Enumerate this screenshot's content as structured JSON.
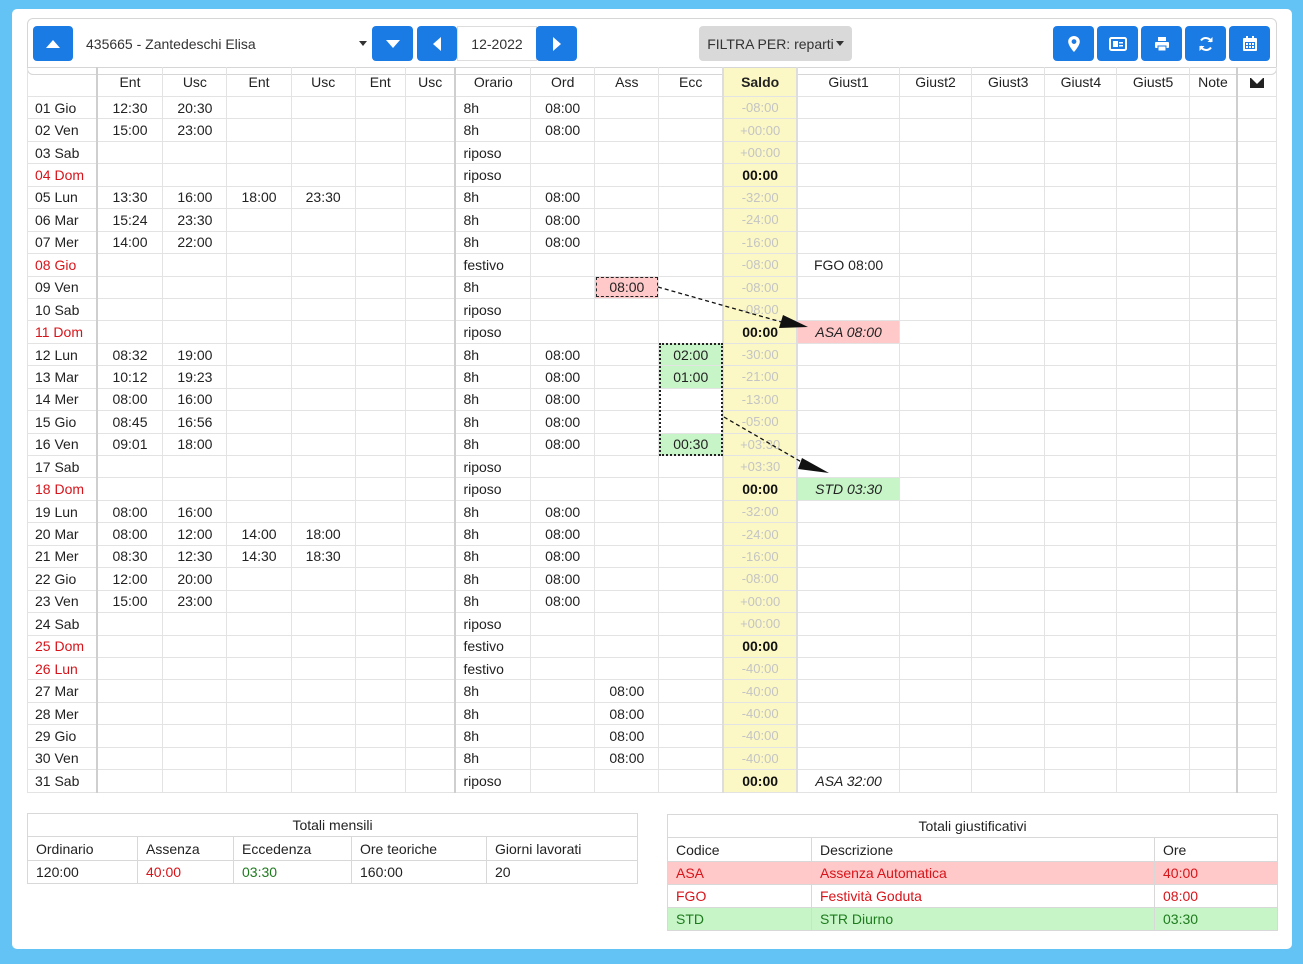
{
  "toolbar": {
    "employee": "435665 - Zantedeschi Elisa",
    "month": "12-2022",
    "filter_label": "FILTRA PER: reparti"
  },
  "icons": {
    "prev_employee": "chevron-up-icon",
    "next_employee": "chevron-down-icon",
    "prev_month": "chevron-left-icon",
    "next_month": "chevron-right-icon",
    "right_buttons": [
      "map-marker-icon",
      "id-card-icon",
      "print-icon",
      "refresh-icon",
      "calendar-icon"
    ],
    "notes_header": "envelope-icon"
  },
  "colors": {
    "accent": "#1a7be5",
    "holiday_red": "#d7141a",
    "saldo_bg": "#fbf8c5",
    "absence_bg": "#ffc9c9",
    "excess_bg": "#c7f5c7",
    "excess_green": "#1e7b1e",
    "page_bg": "#63c3f4"
  },
  "grid": {
    "columns": [
      "",
      "Ent",
      "Usc",
      "Ent",
      "Usc",
      "Ent",
      "Usc",
      "Orario",
      "Ord",
      "Ass",
      "Ecc",
      "Saldo",
      "Giust1",
      "Giust2",
      "Giust3",
      "Giust4",
      "Giust5",
      "Note",
      ""
    ],
    "rows": [
      {
        "day": "01 Gio",
        "red": false,
        "e1": "12:30",
        "u1": "20:30",
        "e2": "",
        "u2": "",
        "orario": "8h",
        "ord": "08:00",
        "ass": "",
        "ecc": "",
        "saldo": "-08:00",
        "saldo_bold": false,
        "g1": ""
      },
      {
        "day": "02 Ven",
        "red": false,
        "e1": "15:00",
        "u1": "23:00",
        "e2": "",
        "u2": "",
        "orario": "8h",
        "ord": "08:00",
        "ass": "",
        "ecc": "",
        "saldo": "+00:00",
        "saldo_bold": false,
        "g1": ""
      },
      {
        "day": "03 Sab",
        "red": false,
        "e1": "",
        "u1": "",
        "e2": "",
        "u2": "",
        "orario": "riposo",
        "ord": "",
        "ass": "",
        "ecc": "",
        "saldo": "+00:00",
        "saldo_bold": false,
        "g1": ""
      },
      {
        "day": "04 Dom",
        "red": true,
        "e1": "",
        "u1": "",
        "e2": "",
        "u2": "",
        "orario": "riposo",
        "ord": "",
        "ass": "",
        "ecc": "",
        "saldo": "00:00",
        "saldo_bold": true,
        "g1": ""
      },
      {
        "day": "05 Lun",
        "red": false,
        "e1": "13:30",
        "u1": "16:00",
        "e2": "18:00",
        "u2": "23:30",
        "orario": "8h",
        "ord": "08:00",
        "ass": "",
        "ecc": "",
        "saldo": "-32:00",
        "saldo_bold": false,
        "g1": ""
      },
      {
        "day": "06 Mar",
        "red": false,
        "e1": "15:24",
        "u1": "23:30",
        "e2": "",
        "u2": "",
        "orario": "8h",
        "ord": "08:00",
        "ass": "",
        "ecc": "",
        "saldo": "-24:00",
        "saldo_bold": false,
        "g1": ""
      },
      {
        "day": "07 Mer",
        "red": false,
        "e1": "14:00",
        "u1": "22:00",
        "e2": "",
        "u2": "",
        "orario": "8h",
        "ord": "08:00",
        "ass": "",
        "ecc": "",
        "saldo": "-16:00",
        "saldo_bold": false,
        "g1": ""
      },
      {
        "day": "08 Gio",
        "red": true,
        "e1": "",
        "u1": "",
        "e2": "",
        "u2": "",
        "orario": "festivo",
        "ord": "",
        "ass": "",
        "ecc": "",
        "saldo": "-08:00",
        "saldo_bold": false,
        "g1": "FGO 08:00",
        "g1_style": "red"
      },
      {
        "day": "09 Ven",
        "red": false,
        "e1": "",
        "u1": "",
        "e2": "",
        "u2": "",
        "orario": "8h",
        "ord": "",
        "ass": "08:00",
        "ass_hl": true,
        "ecc": "",
        "saldo": "-08:00",
        "saldo_bold": false,
        "g1": ""
      },
      {
        "day": "10 Sab",
        "red": false,
        "e1": "",
        "u1": "",
        "e2": "",
        "u2": "",
        "orario": "riposo",
        "ord": "",
        "ass": "",
        "ecc": "",
        "saldo": "-08:00",
        "saldo_bold": false,
        "g1": ""
      },
      {
        "day": "11 Dom",
        "red": true,
        "e1": "",
        "u1": "",
        "e2": "",
        "u2": "",
        "orario": "riposo",
        "ord": "",
        "ass": "",
        "ecc": "",
        "saldo": "00:00",
        "saldo_bold": true,
        "g1": "ASA 08:00",
        "g1_style": "asa"
      },
      {
        "day": "12 Lun",
        "red": false,
        "e1": "08:32",
        "u1": "19:00",
        "e2": "",
        "u2": "",
        "orario": "8h",
        "ord": "08:00",
        "ass": "",
        "ecc": "02:00",
        "ecc_hl": true,
        "saldo": "-30:00",
        "saldo_bold": false,
        "g1": ""
      },
      {
        "day": "13 Mar",
        "red": false,
        "e1": "10:12",
        "u1": "19:23",
        "e2": "",
        "u2": "",
        "orario": "8h",
        "ord": "08:00",
        "ass": "",
        "ecc": "01:00",
        "ecc_hl": true,
        "saldo": "-21:00",
        "saldo_bold": false,
        "g1": ""
      },
      {
        "day": "14 Mer",
        "red": false,
        "e1": "08:00",
        "u1": "16:00",
        "e2": "",
        "u2": "",
        "orario": "8h",
        "ord": "08:00",
        "ass": "",
        "ecc": "",
        "saldo": "-13:00",
        "saldo_bold": false,
        "g1": ""
      },
      {
        "day": "15 Gio",
        "red": false,
        "e1": "08:45",
        "u1": "16:56",
        "e2": "",
        "u2": "",
        "orario": "8h",
        "ord": "08:00",
        "ass": "",
        "ecc": "",
        "saldo": "-05:00",
        "saldo_bold": false,
        "g1": ""
      },
      {
        "day": "16 Ven",
        "red": false,
        "e1": "09:01",
        "u1": "18:00",
        "e2": "",
        "u2": "",
        "orario": "8h",
        "ord": "08:00",
        "ass": "",
        "ecc": "00:30",
        "ecc_hl": true,
        "saldo": "+03:30",
        "saldo_bold": false,
        "g1": ""
      },
      {
        "day": "17 Sab",
        "red": false,
        "e1": "",
        "u1": "",
        "e2": "",
        "u2": "",
        "orario": "riposo",
        "ord": "",
        "ass": "",
        "ecc": "",
        "saldo": "+03:30",
        "saldo_bold": false,
        "g1": ""
      },
      {
        "day": "18 Dom",
        "red": true,
        "e1": "",
        "u1": "",
        "e2": "",
        "u2": "",
        "orario": "riposo",
        "ord": "",
        "ass": "",
        "ecc": "",
        "saldo": "00:00",
        "saldo_bold": true,
        "g1": "STD 03:30",
        "g1_style": "std"
      },
      {
        "day": "19 Lun",
        "red": false,
        "e1": "08:00",
        "u1": "16:00",
        "e2": "",
        "u2": "",
        "orario": "8h",
        "ord": "08:00",
        "ass": "",
        "ecc": "",
        "saldo": "-32:00",
        "saldo_bold": false,
        "g1": ""
      },
      {
        "day": "20 Mar",
        "red": false,
        "e1": "08:00",
        "u1": "12:00",
        "e2": "14:00",
        "u2": "18:00",
        "orario": "8h",
        "ord": "08:00",
        "ass": "",
        "ecc": "",
        "saldo": "-24:00",
        "saldo_bold": false,
        "g1": ""
      },
      {
        "day": "21 Mer",
        "red": false,
        "e1": "08:30",
        "u1": "12:30",
        "e2": "14:30",
        "u2": "18:30",
        "orario": "8h",
        "ord": "08:00",
        "ass": "",
        "ecc": "",
        "saldo": "-16:00",
        "saldo_bold": false,
        "g1": ""
      },
      {
        "day": "22 Gio",
        "red": false,
        "e1": "12:00",
        "u1": "20:00",
        "e2": "",
        "u2": "",
        "orario": "8h",
        "ord": "08:00",
        "ass": "",
        "ecc": "",
        "saldo": "-08:00",
        "saldo_bold": false,
        "g1": ""
      },
      {
        "day": "23 Ven",
        "red": false,
        "e1": "15:00",
        "u1": "23:00",
        "e2": "",
        "u2": "",
        "orario": "8h",
        "ord": "08:00",
        "ass": "",
        "ecc": "",
        "saldo": "+00:00",
        "saldo_bold": false,
        "g1": ""
      },
      {
        "day": "24 Sab",
        "red": false,
        "e1": "",
        "u1": "",
        "e2": "",
        "u2": "",
        "orario": "riposo",
        "ord": "",
        "ass": "",
        "ecc": "",
        "saldo": "+00:00",
        "saldo_bold": false,
        "g1": ""
      },
      {
        "day": "25 Dom",
        "red": true,
        "e1": "",
        "u1": "",
        "e2": "",
        "u2": "",
        "orario": "festivo",
        "ord": "",
        "ass": "",
        "ecc": "",
        "saldo": "00:00",
        "saldo_bold": true,
        "g1": ""
      },
      {
        "day": "26 Lun",
        "red": true,
        "e1": "",
        "u1": "",
        "e2": "",
        "u2": "",
        "orario": "festivo",
        "ord": "",
        "ass": "",
        "ecc": "",
        "saldo": "-40:00",
        "saldo_bold": false,
        "g1": ""
      },
      {
        "day": "27 Mar",
        "red": false,
        "e1": "",
        "u1": "",
        "e2": "",
        "u2": "",
        "orario": "8h",
        "ord": "",
        "ass": "08:00",
        "ecc": "",
        "saldo": "-40:00",
        "saldo_bold": false,
        "g1": ""
      },
      {
        "day": "28 Mer",
        "red": false,
        "e1": "",
        "u1": "",
        "e2": "",
        "u2": "",
        "orario": "8h",
        "ord": "",
        "ass": "08:00",
        "ecc": "",
        "saldo": "-40:00",
        "saldo_bold": false,
        "g1": ""
      },
      {
        "day": "29 Gio",
        "red": false,
        "e1": "",
        "u1": "",
        "e2": "",
        "u2": "",
        "orario": "8h",
        "ord": "",
        "ass": "08:00",
        "ecc": "",
        "saldo": "-40:00",
        "saldo_bold": false,
        "g1": ""
      },
      {
        "day": "30 Ven",
        "red": false,
        "e1": "",
        "u1": "",
        "e2": "",
        "u2": "",
        "orario": "8h",
        "ord": "",
        "ass": "08:00",
        "ecc": "",
        "saldo": "-40:00",
        "saldo_bold": false,
        "g1": ""
      },
      {
        "day": "31 Sab",
        "red": false,
        "e1": "",
        "u1": "",
        "e2": "",
        "u2": "",
        "orario": "riposo",
        "ord": "",
        "ass": "",
        "ecc": "",
        "saldo": "00:00",
        "saldo_bold": true,
        "g1": "ASA 32:00",
        "g1_style": "red-it"
      }
    ]
  },
  "totali_mensili": {
    "title": "Totali mensili",
    "headers": [
      "Ordinario",
      "Assenza",
      "Eccedenza",
      "Ore teoriche",
      "Giorni lavorati"
    ],
    "values": [
      "120:00",
      "40:00",
      "03:30",
      "160:00",
      "20"
    ]
  },
  "totali_giustificativi": {
    "title": "Totali giustificativi",
    "headers": [
      "Codice",
      "Descrizione",
      "Ore"
    ],
    "rows": [
      {
        "codice": "ASA",
        "descrizione": "Assenza Automatica",
        "ore": "40:00",
        "style": "asa"
      },
      {
        "codice": "FGO",
        "descrizione": "Festività Goduta",
        "ore": "08:00",
        "style": "fgo"
      },
      {
        "codice": "STD",
        "descrizione": "STR Diurno",
        "ore": "03:30",
        "style": "std"
      }
    ]
  }
}
